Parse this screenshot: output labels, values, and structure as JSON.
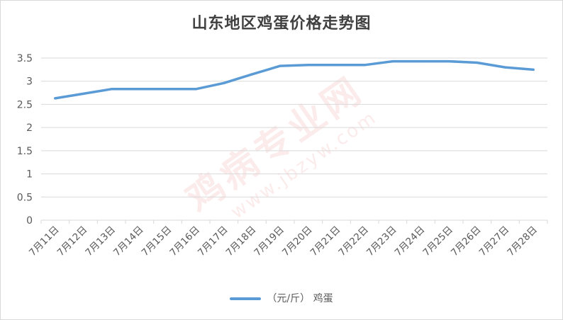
{
  "chart_data": {
    "type": "line",
    "title": "山东地区鸡蛋价格走势图",
    "categories": [
      "7月11日",
      "7月12日",
      "7月13日",
      "7月14日",
      "7月15日",
      "7月16日",
      "7月17日",
      "7月18日",
      "7月19日",
      "7月20日",
      "7月21日",
      "7月22日",
      "7月23日",
      "7月24日",
      "7月25日",
      "7月26日",
      "7月27日",
      "7月28日"
    ],
    "series": [
      {
        "name": "（元/斤） 鸡蛋",
        "values": [
          2.63,
          2.73,
          2.83,
          2.83,
          2.83,
          2.83,
          2.96,
          3.15,
          3.33,
          3.35,
          3.35,
          3.35,
          3.43,
          3.43,
          3.43,
          3.4,
          3.3,
          3.25
        ],
        "color": "#5b9bd5"
      }
    ],
    "ylim": [
      0,
      3.5
    ],
    "yticks": [
      "0",
      "0.5",
      "1",
      "1.5",
      "2",
      "2.5",
      "3",
      "3.5"
    ],
    "grid": true,
    "legend_position": "bottom"
  },
  "watermark": {
    "brand": "鸡病专业网",
    "url": "www.jbzyw.com"
  }
}
